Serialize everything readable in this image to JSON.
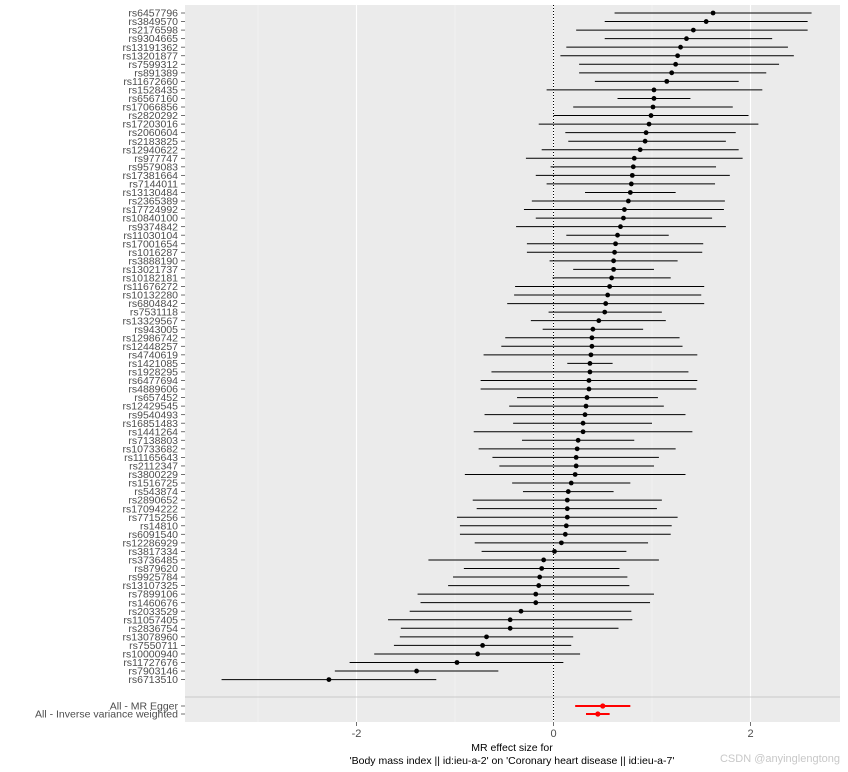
{
  "chart_data": {
    "type": "forest",
    "xlabel_lines": [
      "MR effect size for",
      "'Body mass index || id:ieu-a-2' on 'Coronary heart disease || id:ieu-a-7'"
    ],
    "x_ticks": [
      -2,
      0,
      2
    ],
    "xlim": [
      -3.5,
      2.9
    ],
    "zero_line": 0,
    "grid": true,
    "snps": [
      {
        "label": "rs6457796",
        "b": 1.62,
        "lo": 0.62,
        "hi": 2.62
      },
      {
        "label": "rs3849570",
        "b": 1.55,
        "lo": 0.52,
        "hi": 2.58
      },
      {
        "label": "rs2176598",
        "b": 1.42,
        "lo": 0.23,
        "hi": 2.58
      },
      {
        "label": "rs9304665",
        "b": 1.35,
        "lo": 0.52,
        "hi": 2.22
      },
      {
        "label": "rs13191362",
        "b": 1.29,
        "lo": 0.13,
        "hi": 2.38
      },
      {
        "label": "rs13201877",
        "b": 1.26,
        "lo": 0.07,
        "hi": 2.44
      },
      {
        "label": "rs7599312",
        "b": 1.24,
        "lo": 0.26,
        "hi": 2.29
      },
      {
        "label": "rs891389",
        "b": 1.2,
        "lo": 0.26,
        "hi": 2.16
      },
      {
        "label": "rs11672660",
        "b": 1.15,
        "lo": 0.42,
        "hi": 1.88
      },
      {
        "label": "rs1528435",
        "b": 1.02,
        "lo": -0.07,
        "hi": 2.12
      },
      {
        "label": "rs6567160",
        "b": 1.02,
        "lo": 0.65,
        "hi": 1.39
      },
      {
        "label": "rs17066856",
        "b": 1.01,
        "lo": 0.2,
        "hi": 1.82
      },
      {
        "label": "rs2820292",
        "b": 0.99,
        "lo": 0.0,
        "hi": 1.98
      },
      {
        "label": "rs17203016",
        "b": 0.97,
        "lo": -0.15,
        "hi": 2.08
      },
      {
        "label": "rs2060604",
        "b": 0.94,
        "lo": 0.12,
        "hi": 1.85
      },
      {
        "label": "rs2183825",
        "b": 0.93,
        "lo": 0.15,
        "hi": 1.75
      },
      {
        "label": "rs12940622",
        "b": 0.88,
        "lo": -0.12,
        "hi": 1.88
      },
      {
        "label": "rs977747",
        "b": 0.82,
        "lo": -0.28,
        "hi": 1.92
      },
      {
        "label": "rs9579083",
        "b": 0.81,
        "lo": -0.03,
        "hi": 1.65
      },
      {
        "label": "rs17381664",
        "b": 0.8,
        "lo": -0.18,
        "hi": 1.79
      },
      {
        "label": "rs7144011",
        "b": 0.79,
        "lo": -0.07,
        "hi": 1.64
      },
      {
        "label": "rs13130484",
        "b": 0.78,
        "lo": 0.32,
        "hi": 1.24
      },
      {
        "label": "rs2365389",
        "b": 0.76,
        "lo": -0.22,
        "hi": 1.74
      },
      {
        "label": "rs17724992",
        "b": 0.72,
        "lo": -0.3,
        "hi": 1.73
      },
      {
        "label": "rs10840100",
        "b": 0.71,
        "lo": -0.18,
        "hi": 1.61
      },
      {
        "label": "rs9374842",
        "b": 0.68,
        "lo": -0.38,
        "hi": 1.75
      },
      {
        "label": "rs11030104",
        "b": 0.65,
        "lo": 0.13,
        "hi": 1.17
      },
      {
        "label": "rs17001654",
        "b": 0.63,
        "lo": -0.27,
        "hi": 1.52
      },
      {
        "label": "rs1016287",
        "b": 0.62,
        "lo": -0.27,
        "hi": 1.51
      },
      {
        "label": "rs3888190",
        "b": 0.61,
        "lo": -0.04,
        "hi": 1.26
      },
      {
        "label": "rs13021737",
        "b": 0.61,
        "lo": 0.2,
        "hi": 1.02
      },
      {
        "label": "rs10182181",
        "b": 0.59,
        "lo": -0.01,
        "hi": 1.19
      },
      {
        "label": "rs11676272",
        "b": 0.57,
        "lo": -0.39,
        "hi": 1.53
      },
      {
        "label": "rs10132280",
        "b": 0.55,
        "lo": -0.4,
        "hi": 1.5
      },
      {
        "label": "rs6804842",
        "b": 0.53,
        "lo": -0.47,
        "hi": 1.53
      },
      {
        "label": "rs7531118",
        "b": 0.52,
        "lo": -0.05,
        "hi": 1.1
      },
      {
        "label": "rs13329567",
        "b": 0.46,
        "lo": -0.23,
        "hi": 1.14
      },
      {
        "label": "rs943005",
        "b": 0.4,
        "lo": -0.11,
        "hi": 0.91
      },
      {
        "label": "rs12986742",
        "b": 0.39,
        "lo": -0.49,
        "hi": 1.28
      },
      {
        "label": "rs12448257",
        "b": 0.39,
        "lo": -0.53,
        "hi": 1.31
      },
      {
        "label": "rs4740619",
        "b": 0.38,
        "lo": -0.71,
        "hi": 1.46
      },
      {
        "label": "rs1421085",
        "b": 0.37,
        "lo": 0.14,
        "hi": 0.6
      },
      {
        "label": "rs1928295",
        "b": 0.37,
        "lo": -0.63,
        "hi": 1.37
      },
      {
        "label": "rs6477694",
        "b": 0.36,
        "lo": -0.74,
        "hi": 1.46
      },
      {
        "label": "rs4889606",
        "b": 0.36,
        "lo": -0.74,
        "hi": 1.45
      },
      {
        "label": "rs657452",
        "b": 0.34,
        "lo": -0.37,
        "hi": 1.06
      },
      {
        "label": "rs12429545",
        "b": 0.33,
        "lo": -0.45,
        "hi": 1.12
      },
      {
        "label": "rs9540493",
        "b": 0.32,
        "lo": -0.7,
        "hi": 1.34
      },
      {
        "label": "rs16851483",
        "b": 0.3,
        "lo": -0.41,
        "hi": 1.0
      },
      {
        "label": "rs1441264",
        "b": 0.3,
        "lo": -0.81,
        "hi": 1.41
      },
      {
        "label": "rs7138803",
        "b": 0.25,
        "lo": -0.32,
        "hi": 0.82
      },
      {
        "label": "rs10733682",
        "b": 0.24,
        "lo": -0.76,
        "hi": 1.24
      },
      {
        "label": "rs11165643",
        "b": 0.23,
        "lo": -0.62,
        "hi": 1.07
      },
      {
        "label": "rs2112347",
        "b": 0.23,
        "lo": -0.55,
        "hi": 1.02
      },
      {
        "label": "rs3800229",
        "b": 0.22,
        "lo": -0.9,
        "hi": 1.34
      },
      {
        "label": "rs1516725",
        "b": 0.18,
        "lo": -0.42,
        "hi": 0.78
      },
      {
        "label": "rs543874",
        "b": 0.15,
        "lo": -0.31,
        "hi": 0.61
      },
      {
        "label": "rs2890652",
        "b": 0.14,
        "lo": -0.82,
        "hi": 1.1
      },
      {
        "label": "rs17094222",
        "b": 0.14,
        "lo": -0.78,
        "hi": 1.05
      },
      {
        "label": "rs7715256",
        "b": 0.14,
        "lo": -0.98,
        "hi": 1.26
      },
      {
        "label": "rs14810",
        "b": 0.13,
        "lo": -0.95,
        "hi": 1.2
      },
      {
        "label": "rs6091540",
        "b": 0.12,
        "lo": -0.95,
        "hi": 1.19
      },
      {
        "label": "rs12286929",
        "b": 0.08,
        "lo": -0.8,
        "hi": 0.96
      },
      {
        "label": "rs3817334",
        "b": 0.01,
        "lo": -0.73,
        "hi": 0.74
      },
      {
        "label": "rs3736485",
        "b": -0.1,
        "lo": -1.27,
        "hi": 1.07
      },
      {
        "label": "rs879620",
        "b": -0.12,
        "lo": -0.91,
        "hi": 0.67
      },
      {
        "label": "rs9925784",
        "b": -0.14,
        "lo": -1.02,
        "hi": 0.75
      },
      {
        "label": "rs13107325",
        "b": -0.15,
        "lo": -1.07,
        "hi": 0.77
      },
      {
        "label": "rs7899106",
        "b": -0.18,
        "lo": -1.38,
        "hi": 1.02
      },
      {
        "label": "rs1460676",
        "b": -0.18,
        "lo": -1.35,
        "hi": 0.98
      },
      {
        "label": "rs2033529",
        "b": -0.33,
        "lo": -1.46,
        "hi": 0.79
      },
      {
        "label": "rs11057405",
        "b": -0.44,
        "lo": -1.68,
        "hi": 0.8
      },
      {
        "label": "rs2836754",
        "b": -0.44,
        "lo": -1.55,
        "hi": 0.66
      },
      {
        "label": "rs13078960",
        "b": -0.68,
        "lo": -1.56,
        "hi": 0.2
      },
      {
        "label": "rs7550711",
        "b": -0.72,
        "lo": -1.62,
        "hi": 0.18
      },
      {
        "label": "rs10000940",
        "b": -0.77,
        "lo": -1.82,
        "hi": 0.27
      },
      {
        "label": "rs11727676",
        "b": -0.98,
        "lo": -2.07,
        "hi": 0.1
      },
      {
        "label": "rs7903146",
        "b": -1.39,
        "lo": -2.22,
        "hi": -0.56
      },
      {
        "label": "rs6713510",
        "b": -2.28,
        "lo": -3.37,
        "hi": -1.19
      }
    ],
    "summary": [
      {
        "label": "All - MR Egger",
        "b": 0.5,
        "lo": 0.22,
        "hi": 0.78,
        "color": "#ff0000"
      },
      {
        "label": "All - Inverse variance weighted",
        "b": 0.45,
        "lo": 0.33,
        "hi": 0.57,
        "color": "#ff0000"
      }
    ],
    "colors": {
      "panel_bg": "#ebebeb",
      "grid_major": "#ffffff",
      "grid_minor": "#f5f5f5",
      "point": "#000000",
      "summary": "#ff0000",
      "separator": "#bebebe"
    }
  },
  "watermark": "CSDN @anyinglengtong"
}
